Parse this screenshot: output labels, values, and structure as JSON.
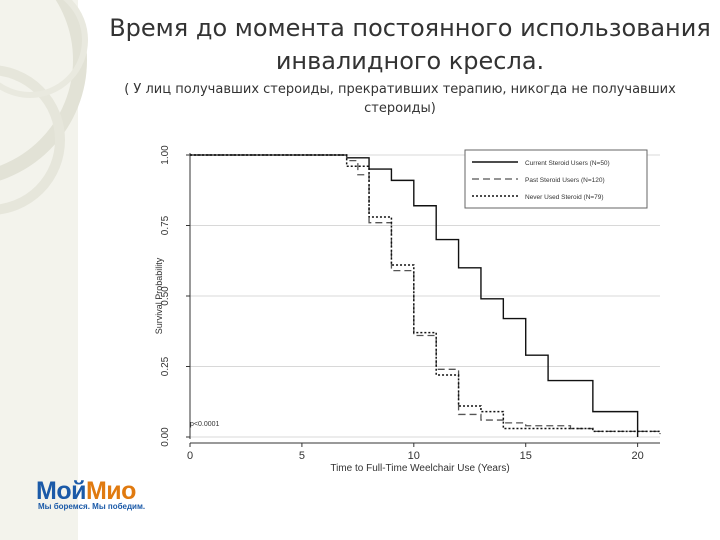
{
  "slide": {
    "title": "Время до момента постоянного использования инвалидного кресла.",
    "subtitle": "( У лиц получавших стероиды, прекративших терапию, никогда не получавших стероиды)"
  },
  "logo": {
    "part1": "Мой",
    "part2": "Мио",
    "slogan": "Мы боремся. Мы победим.",
    "colors": {
      "blue": "#1b5aa8",
      "orange": "#e07a10"
    }
  },
  "chart_data": {
    "type": "line",
    "step": true,
    "xlabel": "Time to Full-Time Weelchair Use (Years)",
    "ylabel": "Survival Probability",
    "xlim": [
      0,
      21
    ],
    "ylim": [
      0,
      1
    ],
    "xticks": [
      0,
      5,
      10,
      15,
      20
    ],
    "yticks": [
      0,
      0.25,
      0.5,
      0.75,
      1
    ],
    "ytick_labels": [
      "0.00",
      "0.25",
      "0.50",
      "0.75",
      "1.00"
    ],
    "grid": "horizontal",
    "legend_position": "top-right",
    "annotation": "p<0.0001",
    "series": [
      {
        "name": "Current Steroid Users (N=50)",
        "style": "solid",
        "x": [
          0,
          7,
          8,
          9,
          10,
          11,
          12,
          13,
          14,
          15,
          16,
          18,
          20
        ],
        "y": [
          1.0,
          0.99,
          0.95,
          0.91,
          0.82,
          0.7,
          0.6,
          0.49,
          0.42,
          0.29,
          0.2,
          0.09,
          0.0
        ]
      },
      {
        "name": "Past Steroid Users (N=120)",
        "style": "dashed",
        "x": [
          0,
          6,
          7,
          7.5,
          8,
          9,
          10,
          11,
          12,
          13,
          14,
          15,
          17,
          18,
          21
        ],
        "y": [
          1.0,
          1.0,
          0.98,
          0.93,
          0.76,
          0.59,
          0.36,
          0.24,
          0.08,
          0.06,
          0.05,
          0.04,
          0.03,
          0.02,
          0.01
        ]
      },
      {
        "name": "Never Used Steroid (N=79)",
        "style": "dotted",
        "x": [
          0,
          6,
          7,
          8,
          9,
          10,
          11,
          12,
          13,
          14,
          15,
          16,
          18,
          21
        ],
        "y": [
          1.0,
          1.0,
          0.96,
          0.78,
          0.61,
          0.37,
          0.22,
          0.11,
          0.09,
          0.03,
          0.03,
          0.03,
          0.02,
          0.02
        ]
      }
    ]
  }
}
